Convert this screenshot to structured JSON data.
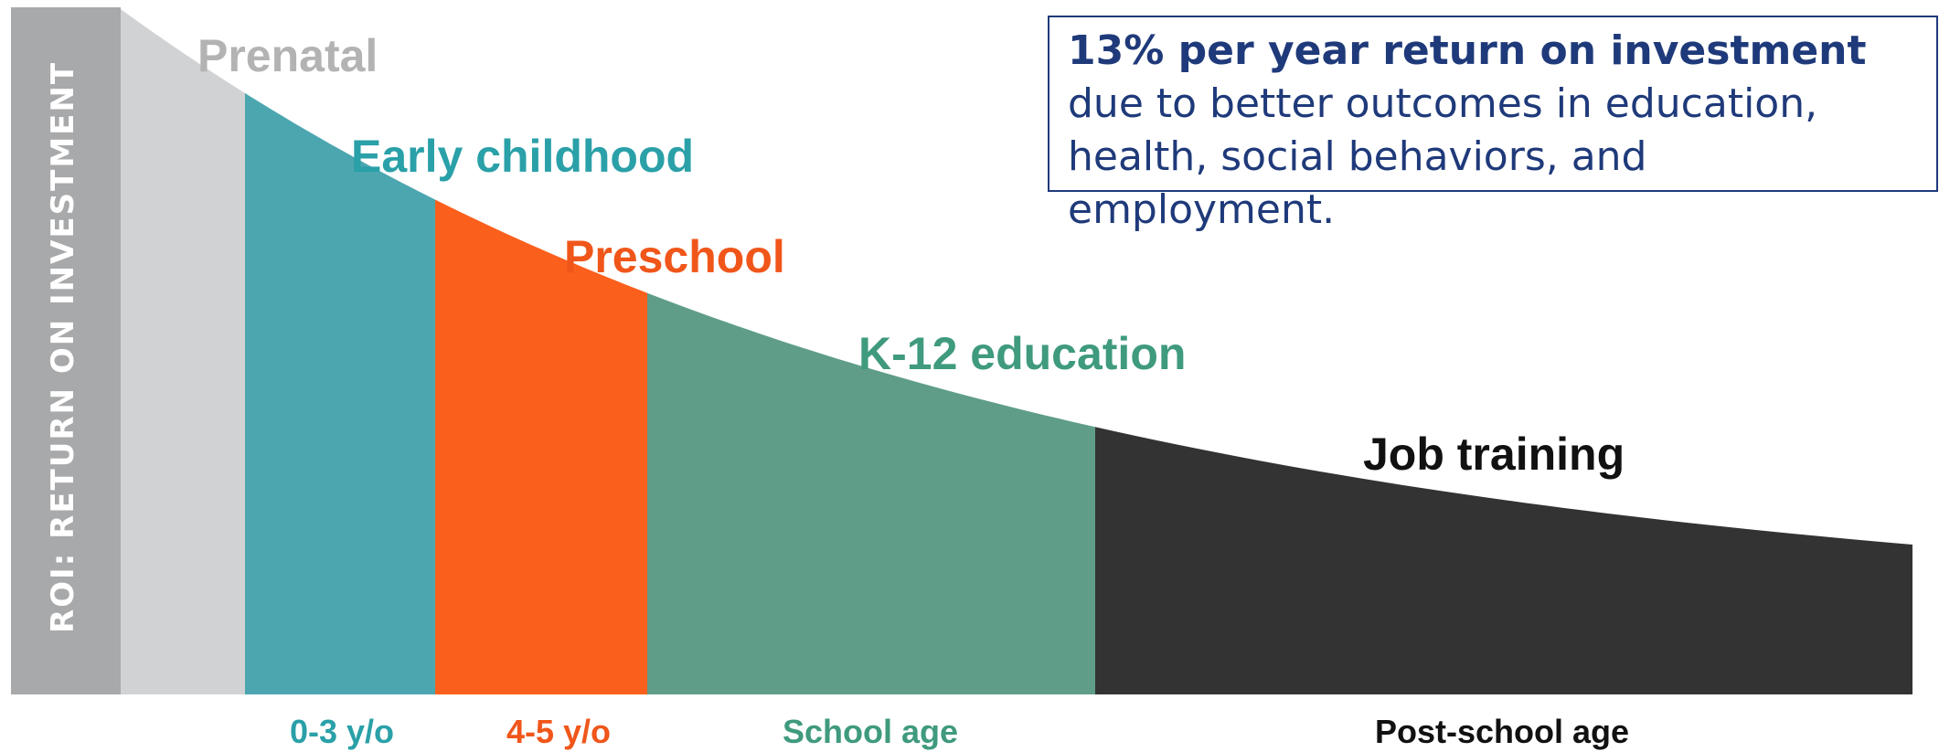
{
  "chart_data": {
    "type": "area",
    "ylabel": "ROI: RETURN ON INVESTMENT",
    "segments": [
      {
        "stage": "Prenatal",
        "age": "",
        "color": "#d1d2d4",
        "label_color": "#b3b3b3"
      },
      {
        "stage": "Early childhood",
        "age": "0-3 y/o",
        "color": "#4ca6b0",
        "label_color": "#2aa0a8"
      },
      {
        "stage": "Preschool",
        "age": "4-5 y/o",
        "color": "#fb5f1c",
        "label_color": "#f0561a"
      },
      {
        "stage": "K-12 education",
        "age": "School age",
        "color": "#5f9d89",
        "label_color": "#3f9a7e"
      },
      {
        "stage": "Job training",
        "age": "Post-school age",
        "color": "#333333",
        "label_color": "#111111"
      }
    ],
    "grid": false,
    "legend": "none"
  },
  "callout": {
    "title": "13% per year return on investment",
    "body": "due to better outcomes in education, health, social behaviors, and employment."
  },
  "colors": {
    "axis_band": "#a8a9ab",
    "callout_text": "#1f3a7a",
    "callout_border": "#1f3a7a"
  }
}
